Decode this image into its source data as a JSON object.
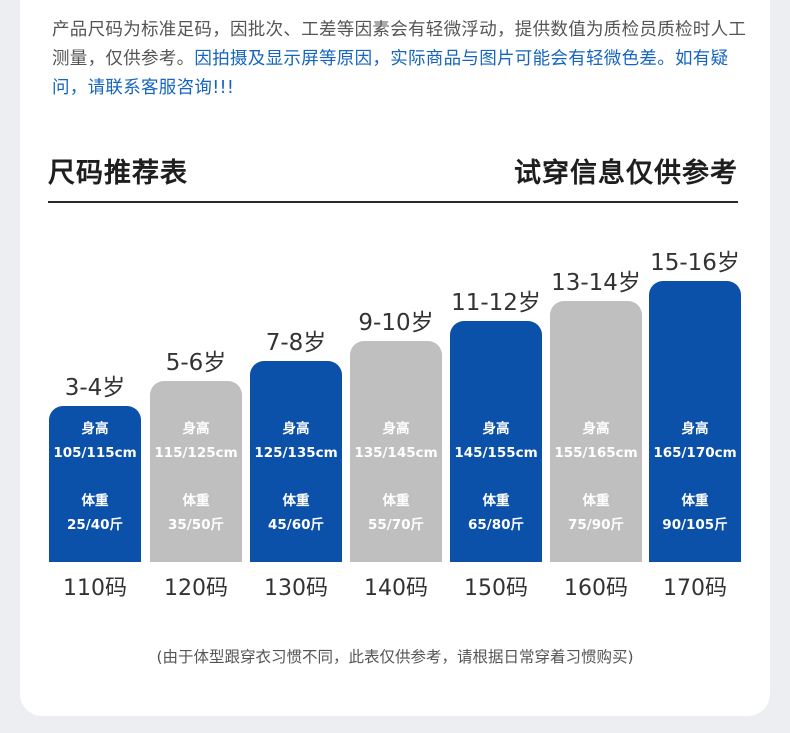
{
  "notice": {
    "grey": "产品尺码为标准足码，因批次、工差等因素会有轻微浮动，提供数值为质检员质检时人工测量，仅供参考。",
    "blue": "因拍摄及显示屏等原因，实际商品与图片可能会有轻微色差。如有疑问，请联系客服咨询!!!"
  },
  "header": {
    "left_title": "尺码推荐表",
    "right_title": "试穿信息仅供参考"
  },
  "sizes": [
    {
      "age": "3-4岁",
      "height_label": "身高",
      "height": "105/115cm",
      "weight_label": "体重",
      "weight": "25/40斤",
      "size": "110码",
      "color": "#0b50a9"
    },
    {
      "age": "5-6岁",
      "height_label": "身高",
      "height": "115/125cm",
      "weight_label": "体重",
      "weight": "35/50斤",
      "size": "120码",
      "color": "#bfbfbf"
    },
    {
      "age": "7-8岁",
      "height_label": "身高",
      "height": "125/135cm",
      "weight_label": "体重",
      "weight": "45/60斤",
      "size": "130码",
      "color": "#0b50a9"
    },
    {
      "age": "9-10岁",
      "height_label": "身高",
      "height": "135/145cm",
      "weight_label": "体重",
      "weight": "55/70斤",
      "size": "140码",
      "color": "#bfbfbf"
    },
    {
      "age": "11-12岁",
      "height_label": "身高",
      "height": "145/155cm",
      "weight_label": "体重",
      "weight": "65/80斤",
      "size": "150码",
      "color": "#0b50a9"
    },
    {
      "age": "13-14岁",
      "height_label": "身高",
      "height": "155/165cm",
      "weight_label": "体重",
      "weight": "75/90斤",
      "size": "160码",
      "color": "#bfbfbf"
    },
    {
      "age": "15-16岁",
      "height_label": "身高",
      "height": "165/170cm",
      "weight_label": "体重",
      "weight": "90/105斤",
      "size": "170码",
      "color": "#0b50a9"
    }
  ],
  "footnote": "(由于体型跟穿衣习惯不同，此表仅供参考，请根据日常穿着习惯购买)"
}
